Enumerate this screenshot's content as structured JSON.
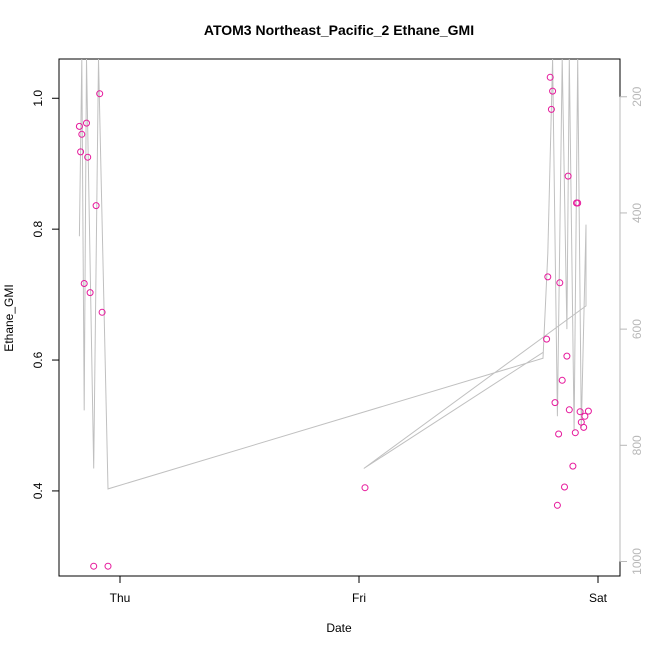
{
  "chart_data": {
    "type": "scatter",
    "title": "ATOM3 Northeast_Pacific_2 Ethane_GMI",
    "xlabel": "Date",
    "ylabel": "Ethane_GMI",
    "x_ticks": [
      {
        "label": "Thu",
        "value": 0
      },
      {
        "label": "Fri",
        "value": 1
      },
      {
        "label": "Sat",
        "value": 2
      }
    ],
    "x_unit": "days (Thu = 0)",
    "y_ticks": [
      0.4,
      0.6,
      0.8,
      1.0
    ],
    "ylim": [
      0.27,
      1.06
    ],
    "y2_ticks": [
      200,
      400,
      600,
      800,
      1000
    ],
    "y2lim_reversed": [
      135,
      1025
    ],
    "grid": false,
    "colors": {
      "points": "#e6199c",
      "line": "#c0c0c0",
      "axis": "#000000",
      "axis2": "#b8b8b8"
    },
    "points": [
      {
        "x": -0.17,
        "y": 0.957
      },
      {
        "x": -0.165,
        "y": 0.918
      },
      {
        "x": -0.16,
        "y": 0.945
      },
      {
        "x": -0.15,
        "y": 0.717
      },
      {
        "x": -0.14,
        "y": 0.962
      },
      {
        "x": -0.135,
        "y": 0.91
      },
      {
        "x": -0.125,
        "y": 0.703
      },
      {
        "x": -0.11,
        "y": 0.285
      },
      {
        "x": -0.1,
        "y": 0.836
      },
      {
        "x": -0.085,
        "y": 1.007
      },
      {
        "x": -0.075,
        "y": 0.673
      },
      {
        "x": -0.05,
        "y": 0.285
      },
      {
        "x": 1.025,
        "y": 0.405
      },
      {
        "x": 1.785,
        "y": 0.632
      },
      {
        "x": 1.79,
        "y": 0.727
      },
      {
        "x": 1.8,
        "y": 1.032
      },
      {
        "x": 1.805,
        "y": 0.983
      },
      {
        "x": 1.81,
        "y": 1.011
      },
      {
        "x": 1.82,
        "y": 0.535
      },
      {
        "x": 1.83,
        "y": 0.378
      },
      {
        "x": 1.835,
        "y": 0.487
      },
      {
        "x": 1.84,
        "y": 0.718
      },
      {
        "x": 1.85,
        "y": 0.569
      },
      {
        "x": 1.86,
        "y": 0.406
      },
      {
        "x": 1.87,
        "y": 0.606
      },
      {
        "x": 1.875,
        "y": 0.881
      },
      {
        "x": 1.88,
        "y": 0.524
      },
      {
        "x": 1.895,
        "y": 0.438
      },
      {
        "x": 1.905,
        "y": 0.489
      },
      {
        "x": 1.91,
        "y": 0.84
      },
      {
        "x": 1.915,
        "y": 0.84
      },
      {
        "x": 1.925,
        "y": 0.521
      },
      {
        "x": 1.93,
        "y": 0.505
      },
      {
        "x": 1.94,
        "y": 0.497
      },
      {
        "x": 1.945,
        "y": 0.514
      },
      {
        "x": 1.96,
        "y": 0.522
      }
    ],
    "pressure_series": [
      {
        "x": -0.17,
        "p": 440
      },
      {
        "x": -0.16,
        "p": 135
      },
      {
        "x": -0.15,
        "p": 740
      },
      {
        "x": -0.14,
        "p": 135
      },
      {
        "x": -0.11,
        "p": 840
      },
      {
        "x": -0.09,
        "p": 135
      },
      {
        "x": -0.05,
        "p": 875
      },
      {
        "x": 1.77,
        "p": 650
      },
      {
        "x": 1.79,
        "p": 470
      },
      {
        "x": 1.81,
        "p": 135
      },
      {
        "x": 1.83,
        "p": 750
      },
      {
        "x": 1.85,
        "p": 135
      },
      {
        "x": 1.87,
        "p": 600
      },
      {
        "x": 1.88,
        "p": 135
      },
      {
        "x": 1.9,
        "p": 775
      },
      {
        "x": 1.915,
        "p": 135
      },
      {
        "x": 1.93,
        "p": 770
      },
      {
        "x": 1.95,
        "p": 420
      },
      {
        "x": 1.95,
        "p": 560
      },
      {
        "x": 1.02,
        "p": 840
      },
      {
        "x": 1.77,
        "p": 640
      }
    ]
  }
}
